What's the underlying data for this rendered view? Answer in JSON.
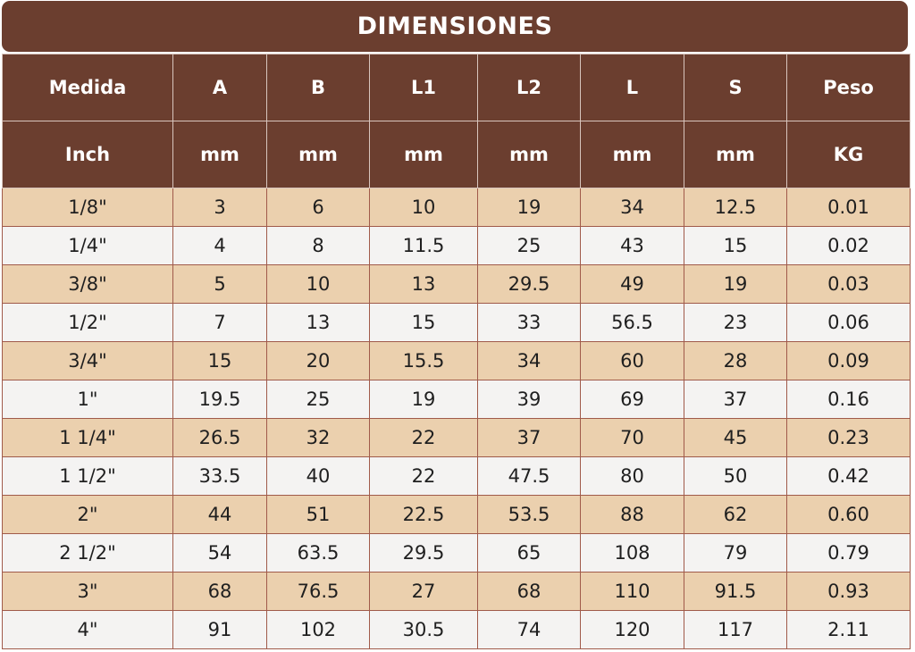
{
  "title": "DIMENSIONES",
  "header_names": [
    "Medida",
    "A",
    "B",
    "L1",
    "L2",
    "L",
    "S",
    "Peso"
  ],
  "header_units": [
    "Inch",
    "mm",
    "mm",
    "mm",
    "mm",
    "mm",
    "mm",
    "KG"
  ],
  "rows": [
    [
      "1/8\"",
      "3",
      "6",
      "10",
      "19",
      "34",
      "12.5",
      "0.01"
    ],
    [
      "1/4\"",
      "4",
      "8",
      "11.5",
      "25",
      "43",
      "15",
      "0.02"
    ],
    [
      "3/8\"",
      "5",
      "10",
      "13",
      "29.5",
      "49",
      "19",
      "0.03"
    ],
    [
      "1/2\"",
      "7",
      "13",
      "15",
      "33",
      "56.5",
      "23",
      "0.06"
    ],
    [
      "3/4\"",
      "15",
      "20",
      "15.5",
      "34",
      "60",
      "28",
      "0.09"
    ],
    [
      "1\"",
      "19.5",
      "25",
      "19",
      "39",
      "69",
      "37",
      "0.16"
    ],
    [
      "1 1/4\"",
      "26.5",
      "32",
      "22",
      "37",
      "70",
      "45",
      "0.23"
    ],
    [
      "1 1/2\"",
      "33.5",
      "40",
      "22",
      "47.5",
      "80",
      "50",
      "0.42"
    ],
    [
      "2\"",
      "44",
      "51",
      "22.5",
      "53.5",
      "88",
      "62",
      "0.60"
    ],
    [
      "2 1/2\"",
      "54",
      "63.5",
      "29.5",
      "65",
      "108",
      "79",
      "0.79"
    ],
    [
      "3\"",
      "68",
      "76.5",
      "27",
      "68",
      "110",
      "91.5",
      "0.93"
    ],
    [
      "4\"",
      "91",
      "102",
      "30.5",
      "74",
      "120",
      "117",
      "2.11"
    ]
  ],
  "colors": {
    "header_bg": "#6b3e2f",
    "row_odd_bg": "#ebd0ae",
    "row_even_bg": "#f4f3f2",
    "grid_line": "#a05a4a"
  }
}
